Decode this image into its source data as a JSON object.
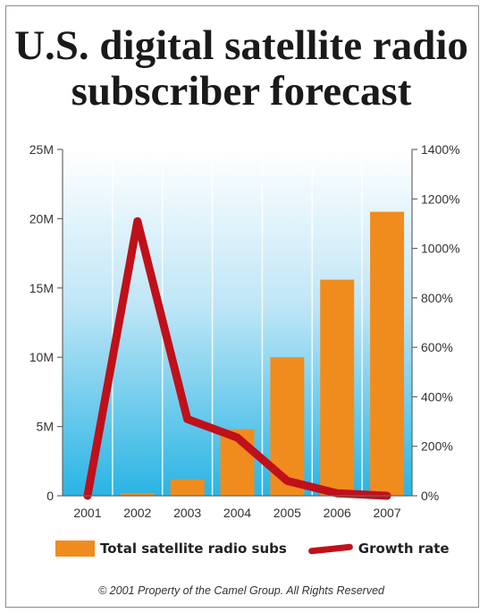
{
  "title_line1": "U.S. digital satellite radio",
  "title_line2": "subscriber forecast",
  "footer": "© 2001 Property of the Camel Group. All Rights Reserved",
  "chart_data": {
    "type": "bar",
    "categories": [
      "2001",
      "2002",
      "2003",
      "2004",
      "2005",
      "2006",
      "2007"
    ],
    "series": [
      {
        "name": "Total satellite radio subs",
        "type": "bar",
        "axis": "left",
        "values": [
          0,
          0.2,
          1.2,
          4.8,
          10.0,
          15.6,
          20.5
        ],
        "unit": "M"
      },
      {
        "name": "Growth rate",
        "type": "line",
        "axis": "right",
        "values": [
          0,
          1110,
          310,
          235,
          60,
          10,
          0
        ],
        "unit": "%"
      }
    ],
    "y_left": {
      "ticks": [
        "0",
        "5M",
        "10M",
        "15M",
        "20M",
        "25M"
      ],
      "lim": [
        0,
        25
      ]
    },
    "y_right": {
      "ticks": [
        "0%",
        "200%",
        "400%",
        "600%",
        "800%",
        "1000%",
        "1200%",
        "1400%"
      ],
      "lim": [
        0,
        1400
      ]
    },
    "colors": {
      "bar": "#f08c1e",
      "line": "#c0101a",
      "bg_top": "#ffffff",
      "bg_bottom": "#29b4e4"
    },
    "legend_position": "bottom",
    "grid": true
  }
}
